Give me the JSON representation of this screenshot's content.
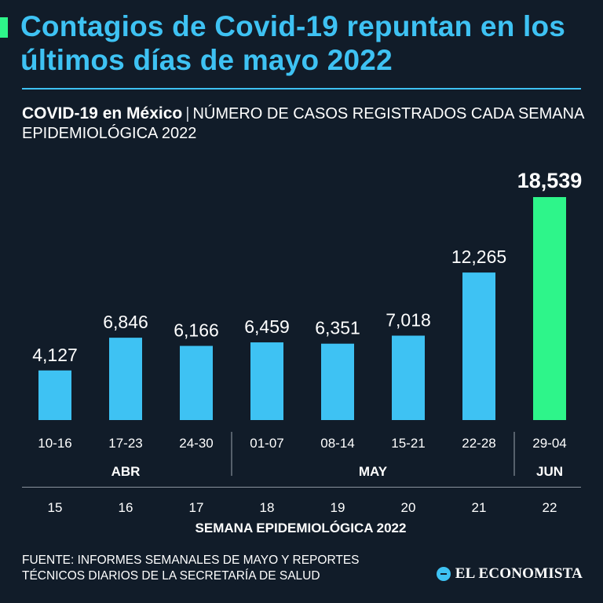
{
  "header": {
    "title": "Contagios de Covid-19 repuntan en los últimos días de mayo 2022",
    "subtitle_strong": "COVID-19 en México",
    "subtitle_separator": "|",
    "subtitle_rest": "NÚMERO DE CASOS REGISTRADOS CADA SEMANA EPIDEMIOLÓGICA 2022"
  },
  "colors": {
    "background": "#111c29",
    "bar": "#3ec2f3",
    "bar_highlight": "#2ef58a",
    "title": "#3ec2f3"
  },
  "chart_data": {
    "type": "bar",
    "title": "COVID-19 en México",
    "ylabel": "Número de casos registrados cada semana epidemiológica 2022",
    "xlabel": "SEMANA EPIDEMIOLÓGICA 2022",
    "ylim": [
      0,
      20000
    ],
    "grid": false,
    "categories": [
      "10-16",
      "17-23",
      "24-30",
      "01-07",
      "08-14",
      "15-21",
      "22-28",
      "29-04"
    ],
    "values": [
      4127,
      6846,
      6166,
      6459,
      6351,
      7018,
      12265,
      18539
    ],
    "value_labels": [
      "4,127",
      "6,846",
      "6,166",
      "6,459",
      "6,351",
      "7,018",
      "12,265",
      "18,539"
    ],
    "highlight_index": 7,
    "weeks": [
      "15",
      "16",
      "17",
      "18",
      "19",
      "20",
      "21",
      "22"
    ],
    "months": [
      {
        "label": "ABR",
        "start": 0,
        "end": 2
      },
      {
        "label": "MAY",
        "start": 3,
        "end": 6
      },
      {
        "label": "JUN",
        "start": 7,
        "end": 7
      }
    ]
  },
  "footer": {
    "source": "FUENTE: INFORMES SEMANALES DE MAYO Y REPORTES TÉCNICOS DIARIOS DE LA SECRETARÍA DE SALUD",
    "logo_text": "EL ECONOMISTA"
  }
}
